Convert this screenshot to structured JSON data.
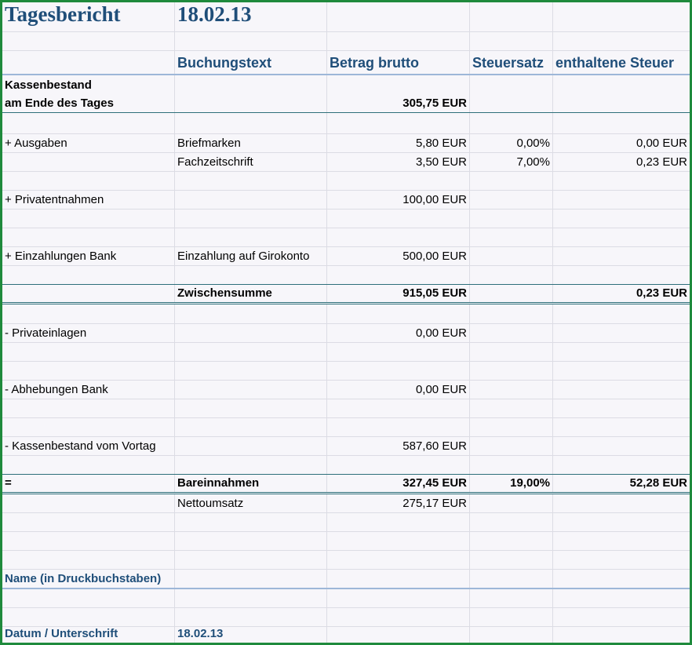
{
  "header": {
    "title": "Tagesbericht",
    "date": "18.02.13"
  },
  "columns": {
    "booking_text": "Buchungstext",
    "gross_amount": "Betrag brutto",
    "tax_rate": "Steuersatz",
    "included_tax": "enthaltene Steuer"
  },
  "cash_end": {
    "label_line1": "Kassenbestand",
    "label_line2": "am Ende des Tages",
    "amount": "305,75 EUR"
  },
  "expenses": {
    "label": "+ Ausgaben",
    "items": [
      {
        "text": "Briefmarken",
        "amount": "5,80 EUR",
        "rate": "0,00%",
        "tax": "0,00 EUR"
      },
      {
        "text": "Fachzeitschrift",
        "amount": "3,50 EUR",
        "rate": "7,00%",
        "tax": "0,23 EUR"
      }
    ]
  },
  "private_withdrawals": {
    "label": "+ Privatentnahmen",
    "amount": "100,00 EUR"
  },
  "bank_deposits": {
    "label": "+ Einzahlungen Bank",
    "text": "Einzahlung auf Girokonto",
    "amount": "500,00 EUR"
  },
  "subtotal": {
    "label": "Zwischensumme",
    "amount": "915,05 EUR",
    "tax": "0,23 EUR"
  },
  "private_deposits": {
    "label": "- Privateinlagen",
    "amount": "0,00 EUR"
  },
  "bank_withdrawals": {
    "label": "- Abhebungen Bank",
    "amount": "0,00 EUR"
  },
  "cash_previous": {
    "label": "- Kassenbestand vom Vortag",
    "amount": "587,60 EUR"
  },
  "cash_receipts": {
    "sign": "=",
    "label": "Bareinnahmen",
    "amount": "327,45 EUR",
    "rate": "19,00%",
    "tax": "52,28 EUR"
  },
  "net_revenue": {
    "label": "Nettoumsatz",
    "amount": "275,17 EUR"
  },
  "footer": {
    "name_label": "Name (in Druckbuchstaben)",
    "date_signature_label": "Datum / Unterschrift",
    "date_value": "18.02.13"
  }
}
